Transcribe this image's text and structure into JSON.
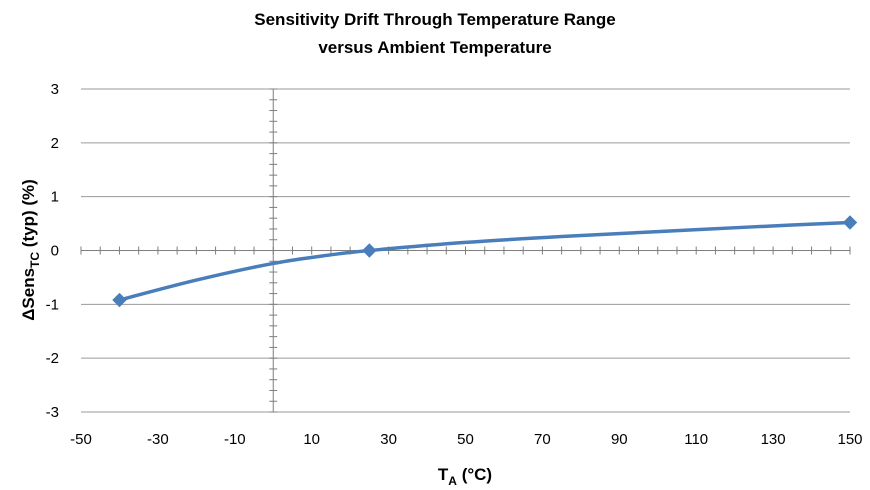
{
  "chart_data": {
    "type": "line",
    "title": [
      "Sensitivity Drift Through Temperature Range",
      "versus Ambient Temperature"
    ],
    "xlabel": {
      "main": "T",
      "sub": "A",
      "suffix": " (°C)"
    },
    "ylabel": {
      "main": "ΔSens",
      "sub": "TC",
      "suffix": " (typ) (%)"
    },
    "xlim": [
      -50,
      150
    ],
    "ylim": [
      -3,
      3
    ],
    "x_ticks": [
      "-50",
      "-30",
      "-10",
      "10",
      "30",
      "50",
      "70",
      "90",
      "110",
      "130",
      "150"
    ],
    "y_ticks": [
      "3",
      "2",
      "1",
      "0",
      "-1",
      "-2",
      "-3"
    ],
    "grid": "horizontal",
    "series": [
      {
        "color": "#4a7ebb",
        "marker": "diamond",
        "markers": [
          {
            "x": -40,
            "y": -0.92
          },
          {
            "x": 25,
            "y": 0.0
          },
          {
            "x": 150,
            "y": 0.52
          }
        ],
        "curve": [
          {
            "x": -40,
            "y": -0.92
          },
          {
            "x": -20,
            "y": -0.55
          },
          {
            "x": 0,
            "y": -0.24
          },
          {
            "x": 15,
            "y": -0.08
          },
          {
            "x": 25,
            "y": 0.0
          },
          {
            "x": 50,
            "y": 0.15
          },
          {
            "x": 75,
            "y": 0.26
          },
          {
            "x": 100,
            "y": 0.35
          },
          {
            "x": 125,
            "y": 0.44
          },
          {
            "x": 150,
            "y": 0.52
          }
        ]
      }
    ]
  }
}
